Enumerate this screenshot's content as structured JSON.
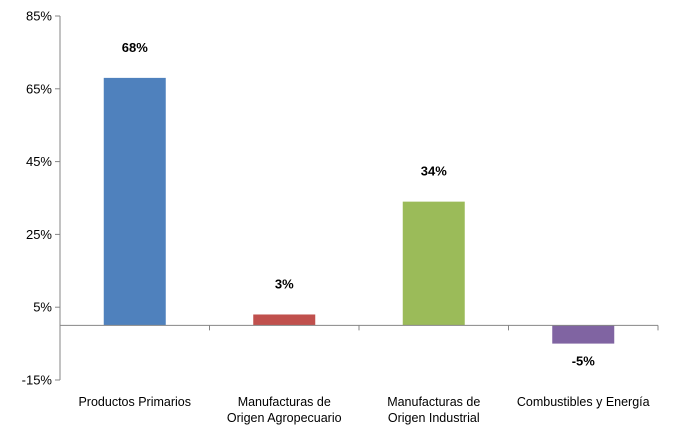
{
  "chart_data": {
    "type": "bar",
    "categories": [
      [
        "Productos  Primarios"
      ],
      [
        "Manufacturas de",
        "Origen Agropecuario"
      ],
      [
        "Manufacturas de",
        "Origen Industrial"
      ],
      [
        "Combustibles y Energía"
      ]
    ],
    "values": [
      68,
      3,
      34,
      -5
    ],
    "data_labels": [
      "68%",
      "3%",
      "34%",
      "-5%"
    ],
    "colors": [
      "#4F81BD",
      "#C0504D",
      "#9BBB59",
      "#8064A2"
    ],
    "yticks": [
      85,
      65,
      45,
      25,
      5,
      -15
    ],
    "ytick_labels": [
      "85%",
      "65%",
      "45%",
      "25%",
      "5%",
      "-15%"
    ],
    "ylim": [
      -15,
      85
    ],
    "grid": false,
    "legend": "none"
  }
}
